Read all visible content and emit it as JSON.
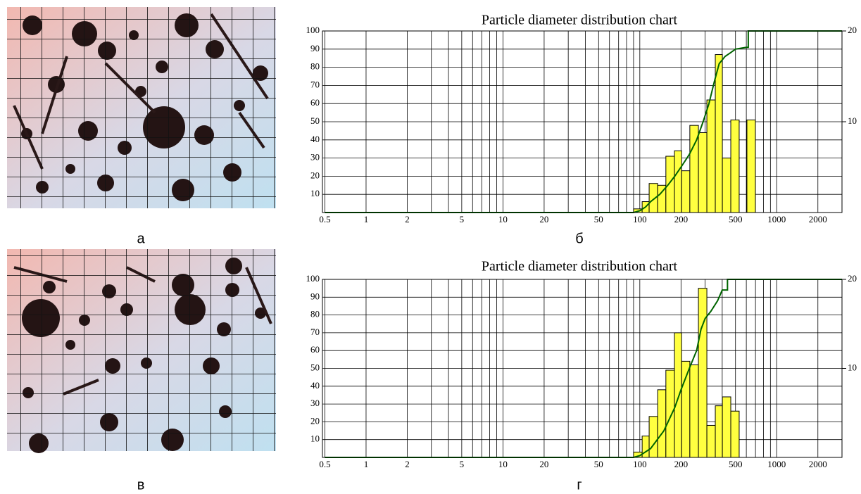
{
  "image_labels": [
    "а",
    "в"
  ],
  "chart_data": [
    {
      "type": "histogram",
      "title": "Particle diameter distribution chart",
      "label": "б",
      "xscale": "log",
      "xlim": [
        0.48,
        3000
      ],
      "xticks": [
        0.5,
        1,
        2,
        5,
        10,
        20,
        50,
        100,
        200,
        500,
        1000,
        2000
      ],
      "x_minor_grid": [
        3,
        4,
        6,
        7,
        8,
        9,
        30,
        40,
        60,
        70,
        80,
        90,
        300,
        400,
        600,
        700,
        800,
        900
      ],
      "ylim": [
        0,
        100
      ],
      "yticks": [
        10,
        20,
        30,
        40,
        50,
        60,
        70,
        80,
        90,
        100
      ],
      "y2lim": [
        0,
        20
      ],
      "y2ticks": [
        10,
        20
      ],
      "grid": true,
      "bar_color": "#ffff40",
      "bins": [
        90,
        104,
        117,
        135,
        155,
        179,
        202,
        232,
        268,
        309,
        356,
        401,
        462,
        532,
        606,
        699
      ],
      "counts": [
        2,
        6,
        16,
        15,
        31,
        34,
        23,
        48,
        44,
        62,
        87,
        30,
        51,
        0,
        51
      ],
      "cumulative": {
        "color": "#006400",
        "x": [
          0.5,
          90,
          100,
          110,
          120,
          140,
          160,
          180,
          200,
          230,
          260,
          290,
          320,
          350,
          380,
          420,
          460,
          500,
          600,
          620,
          620,
          3000
        ],
        "values": [
          0,
          0,
          1,
          3,
          6,
          10,
          15,
          20,
          25,
          32,
          40,
          50,
          60,
          72,
          82,
          86,
          88,
          90,
          91,
          91,
          100,
          100
        ]
      }
    },
    {
      "type": "histogram",
      "title": "Particle diameter distribution chart",
      "label": "г",
      "xscale": "log",
      "xlim": [
        0.48,
        3000
      ],
      "xticks": [
        0.5,
        1,
        2,
        5,
        10,
        20,
        50,
        100,
        200,
        500,
        1000,
        2000
      ],
      "x_minor_grid": [
        3,
        4,
        6,
        7,
        8,
        9,
        30,
        40,
        60,
        70,
        80,
        90,
        300,
        400,
        600,
        700,
        800,
        900
      ],
      "ylim": [
        0,
        100
      ],
      "yticks": [
        10,
        20,
        30,
        40,
        50,
        60,
        70,
        80,
        90,
        100
      ],
      "y2lim": [
        0,
        20
      ],
      "y2ticks": [
        10,
        20
      ],
      "grid": true,
      "bar_color": "#ffff40",
      "bins": [
        90,
        104,
        117,
        135,
        155,
        179,
        202,
        232,
        268,
        309,
        356,
        401,
        462,
        532
      ],
      "counts": [
        3,
        12,
        23,
        38,
        49,
        70,
        54,
        52,
        95,
        18,
        29,
        34,
        26
      ],
      "cumulative": {
        "color": "#006400",
        "x": [
          0.5,
          90,
          100,
          120,
          150,
          180,
          200,
          230,
          260,
          280,
          300,
          330,
          370,
          400,
          437,
          437,
          3000
        ],
        "values": [
          0,
          0,
          1,
          5,
          15,
          28,
          38,
          50,
          60,
          72,
          78,
          82,
          88,
          94,
          94,
          100,
          100
        ]
      }
    }
  ]
}
